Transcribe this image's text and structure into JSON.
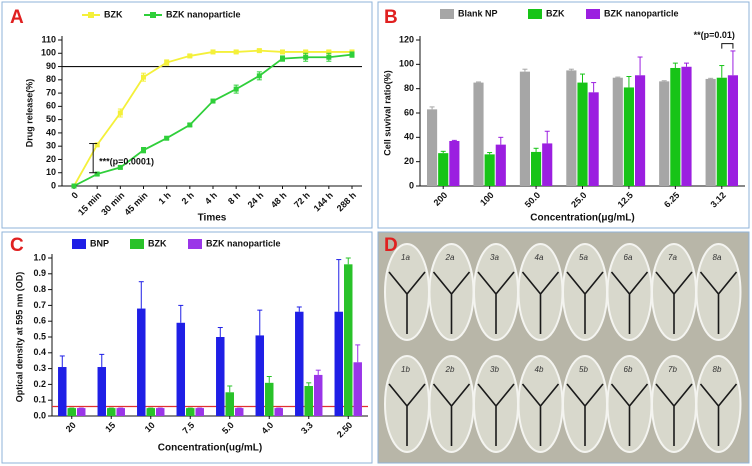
{
  "chart_data": [
    {
      "type": "line",
      "panel_label": "A",
      "xlabel": "Times",
      "ylabel": "Drug release(%)",
      "categories": [
        "0",
        "15 min",
        "30 min",
        "45 min",
        "1 h",
        "2 h",
        "4 h",
        "8 h",
        "24 h",
        "48 h",
        "72 h",
        "144 h",
        "288 h"
      ],
      "series": [
        {
          "name": "BZK",
          "color": "#f4f03a",
          "values": [
            0,
            31,
            55,
            82,
            93,
            98,
            101,
            101,
            102,
            101,
            101,
            101,
            101
          ],
          "errors": [
            0,
            1,
            3,
            3,
            2,
            1,
            1,
            1,
            1,
            1,
            1,
            1,
            1
          ]
        },
        {
          "name": "BZK nanoparticle",
          "color": "#2fcf3a",
          "values": [
            0,
            9,
            14,
            27,
            36,
            46,
            64,
            73,
            83,
            96,
            97,
            97,
            99
          ],
          "errors": [
            0,
            1,
            1,
            2,
            1,
            1,
            1,
            3,
            3,
            2,
            3,
            3,
            2
          ]
        }
      ],
      "ylim": [
        0,
        110
      ],
      "yticks": [
        0,
        10,
        20,
        30,
        40,
        50,
        60,
        70,
        80,
        90,
        100,
        110
      ],
      "hline": 90,
      "annotation": {
        "text": "***(p=0.0001)",
        "category": 1,
        "range": [
          10,
          32
        ]
      }
    },
    {
      "type": "bar",
      "panel_label": "B",
      "xlabel": "Concentration(μg/mL)",
      "ylabel": "Cell suvival ratio(%)",
      "categories": [
        "200",
        "100",
        "50.0",
        "25.0",
        "12.5",
        "6.25",
        "3.12"
      ],
      "series": [
        {
          "name": "Blank NP",
          "color": "#a6a6a6",
          "values": [
            63,
            85,
            94,
            95,
            89,
            86,
            88
          ],
          "errors": [
            2,
            0.5,
            2,
            1,
            0.5,
            0.5,
            0.5
          ]
        },
        {
          "name": "BZK",
          "color": "#17c417",
          "values": [
            27,
            26,
            28,
            85,
            81,
            97,
            89
          ],
          "errors": [
            1.5,
            1.5,
            3,
            7,
            9,
            4,
            10
          ]
        },
        {
          "name": "BZK nanoparticle",
          "color": "#9b1fe0",
          "values": [
            37,
            34,
            35,
            77,
            91,
            98,
            91
          ],
          "errors": [
            0.5,
            6,
            10,
            8,
            15,
            3,
            20
          ]
        }
      ],
      "ylim": [
        0,
        120
      ],
      "yticks": [
        0,
        20,
        40,
        60,
        80,
        100,
        120
      ],
      "annotation": {
        "text": "**(p=0.01)",
        "category": 6,
        "y": 117
      }
    },
    {
      "type": "bar",
      "panel_label": "C",
      "xlabel": "Concentration(ug/mL)",
      "ylabel": "Optical density at 595 nm (OD)",
      "categories": [
        "20",
        "15",
        "10",
        "7.5",
        "5.0",
        "4.0",
        "3.3",
        "2.50"
      ],
      "series": [
        {
          "name": "BNP",
          "color": "#1f1fe6",
          "values": [
            0.31,
            0.31,
            0.68,
            0.59,
            0.5,
            0.51,
            0.66,
            0.66
          ],
          "errors": [
            0.07,
            0.08,
            0.17,
            0.11,
            0.06,
            0.16,
            0.03,
            0.33
          ]
        },
        {
          "name": "BZK",
          "color": "#29c229",
          "values": [
            0.05,
            0.05,
            0.05,
            0.05,
            0.15,
            0.21,
            0.19,
            0.96
          ],
          "errors": [
            0,
            0,
            0,
            0,
            0.04,
            0.04,
            0.02,
            0.04
          ]
        },
        {
          "name": "BZK nanoparticle",
          "color": "#9a35e8",
          "values": [
            0.05,
            0.05,
            0.05,
            0.05,
            0.05,
            0.05,
            0.26,
            0.34
          ],
          "errors": [
            0,
            0,
            0,
            0,
            0,
            0,
            0.03,
            0.11
          ]
        }
      ],
      "ylim": [
        0,
        1.0
      ],
      "yticks": [
        {
          "value": 0,
          "label": "0.0"
        },
        0.1,
        0.2,
        0.3,
        0.4,
        0.5,
        0.6,
        0.7,
        0.8,
        0.9,
        {
          "value": 1,
          "label": "1.0"
        }
      ],
      "hline": 0.06,
      "hline_color": "#e03030"
    }
  ],
  "photo": {
    "panel_label": "D",
    "dishes": [
      "1a",
      "2a",
      "3a",
      "4a",
      "5a",
      "6a",
      "7a",
      "8a",
      "1b",
      "2b",
      "3b",
      "4b",
      "5b",
      "6b",
      "7b",
      "8b"
    ]
  }
}
